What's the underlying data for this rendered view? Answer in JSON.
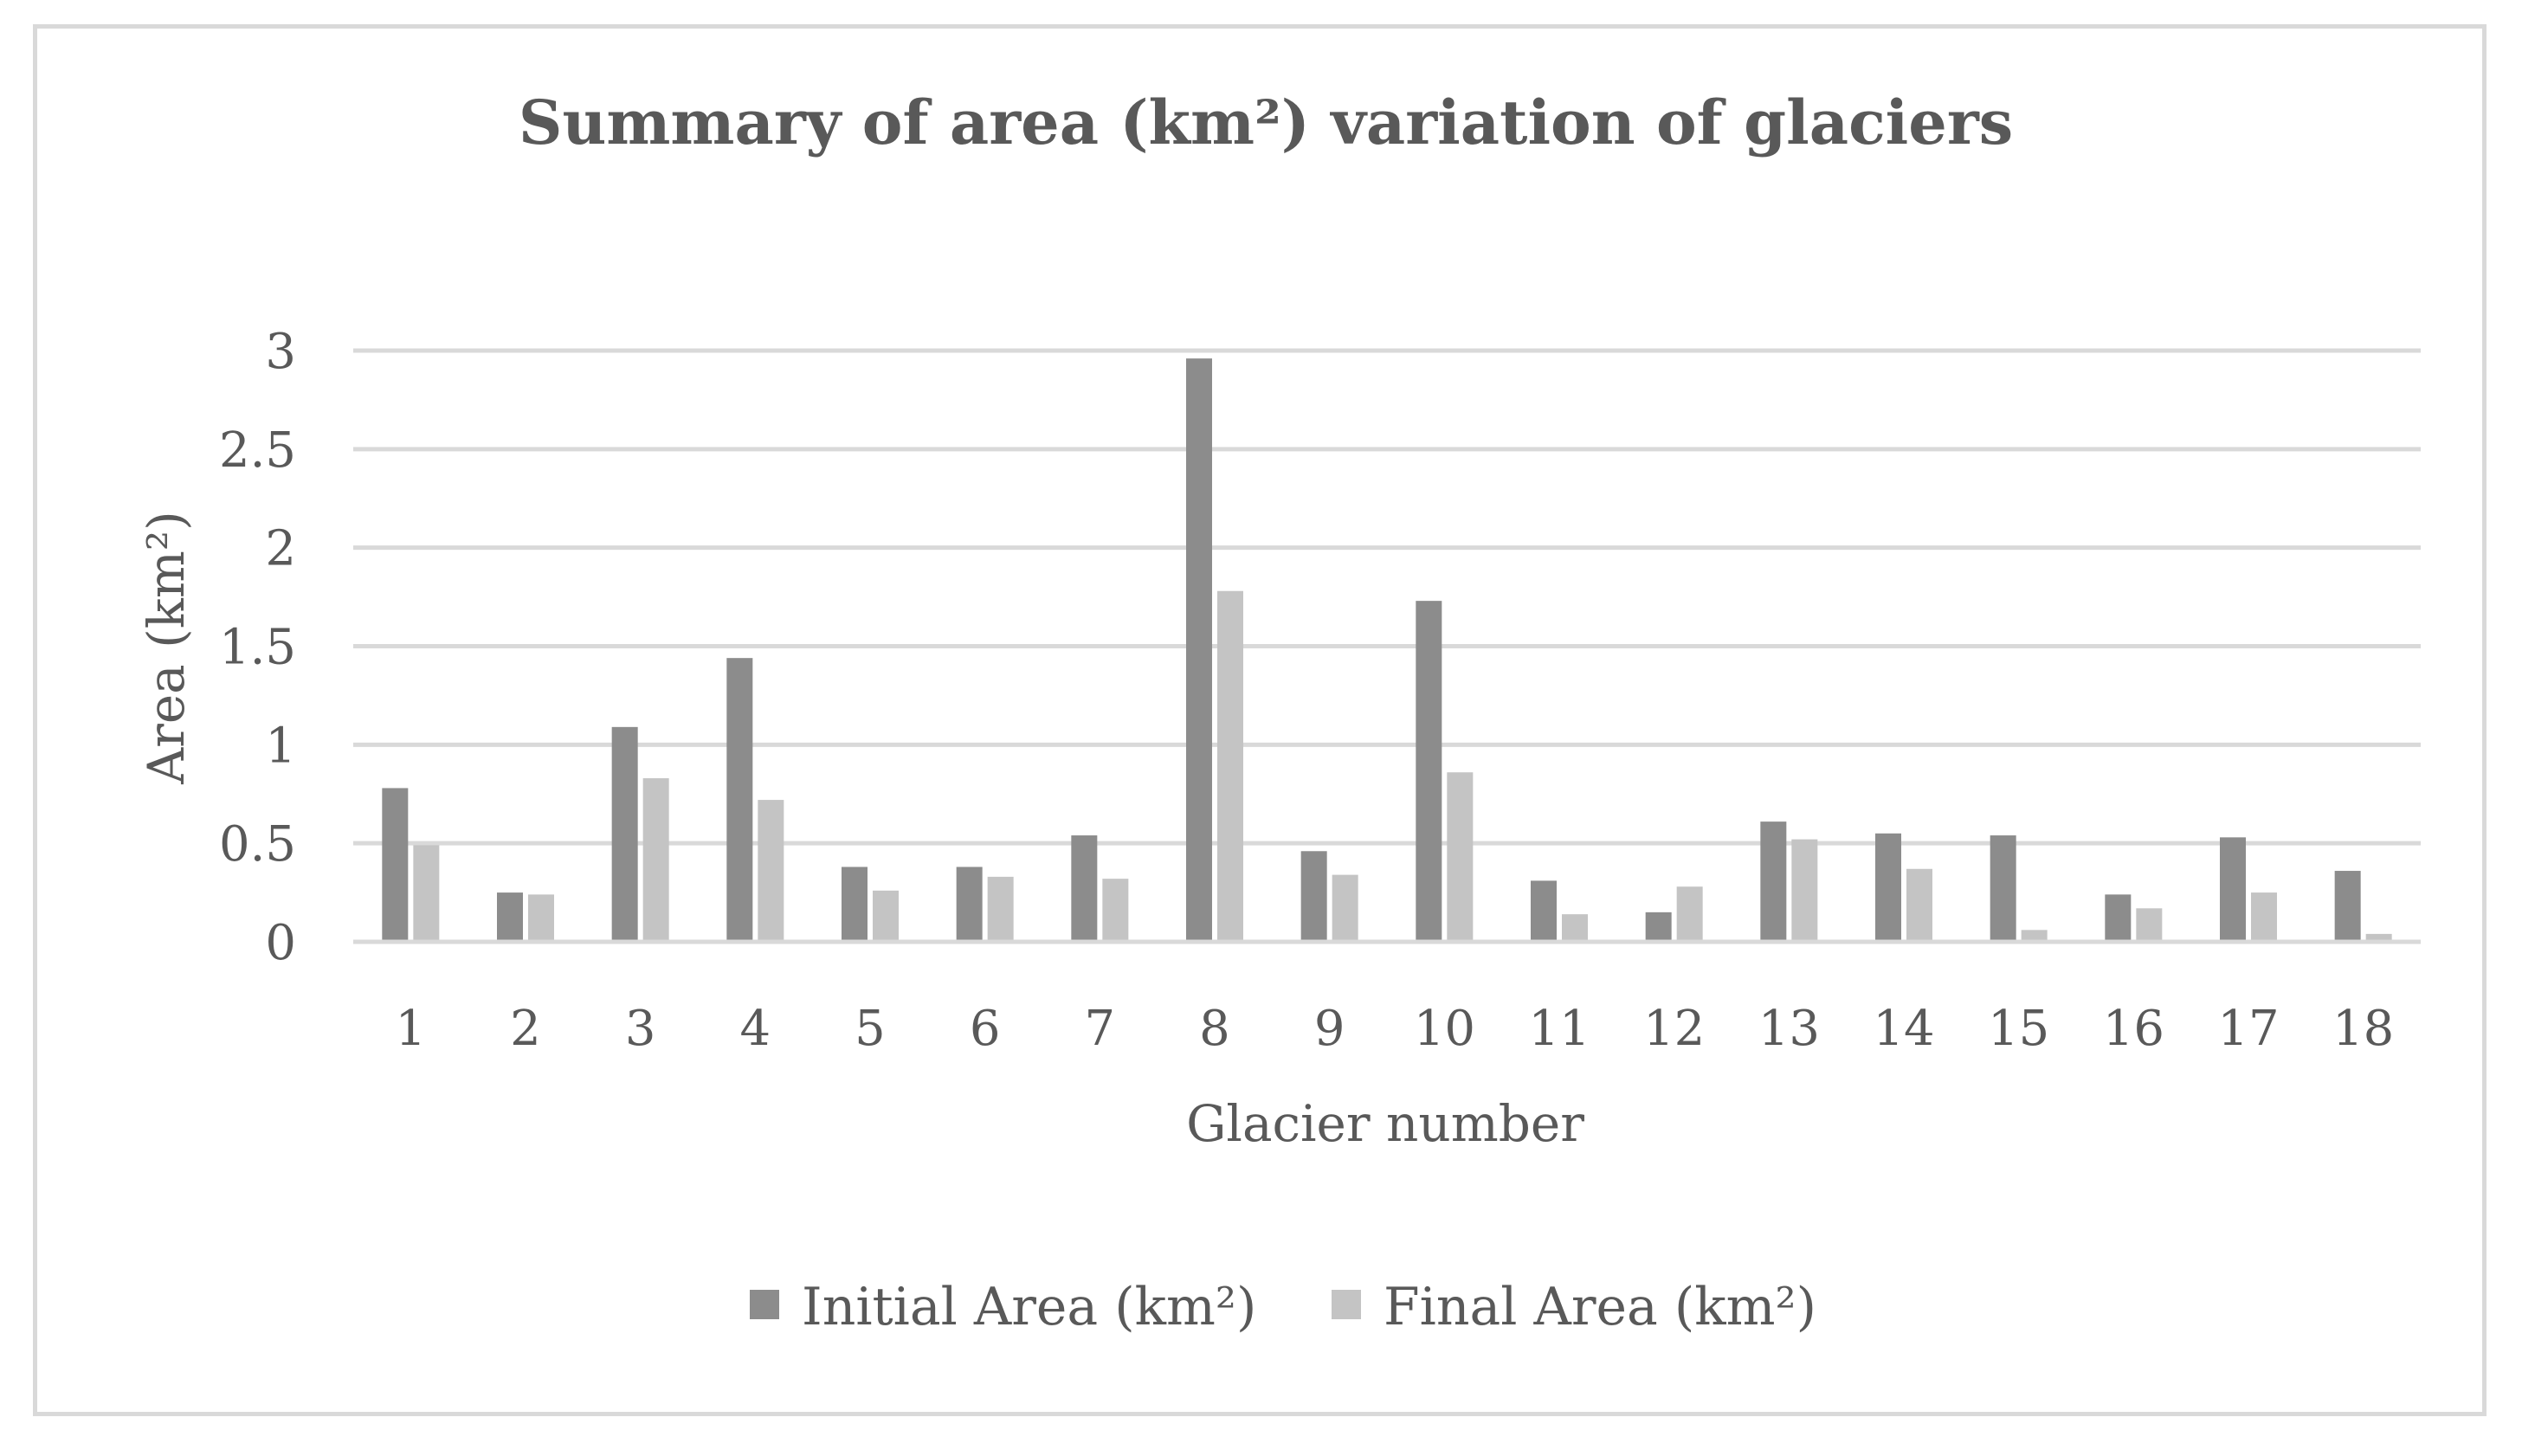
{
  "chart_data": {
    "type": "bar",
    "title": "Summary of area (km²) variation of glaciers",
    "xlabel": "Glacier number",
    "ylabel": "Area (km²)",
    "ylim": [
      0,
      3
    ],
    "yticks": [
      "0",
      "0.5",
      "1",
      "1.5",
      "2",
      "2.5",
      "3"
    ],
    "grid": true,
    "legend_position": "bottom",
    "categories": [
      "1",
      "2",
      "3",
      "4",
      "5",
      "6",
      "7",
      "8",
      "9",
      "10",
      "11",
      "12",
      "13",
      "14",
      "15",
      "16",
      "17",
      "18"
    ],
    "series": [
      {
        "name": "Initial Area (km²)",
        "color": "#8c8c8c",
        "values": [
          0.78,
          0.25,
          1.09,
          1.44,
          0.38,
          0.38,
          0.54,
          2.96,
          0.46,
          1.73,
          0.31,
          0.15,
          0.61,
          0.55,
          0.54,
          0.24,
          0.53,
          0.36
        ]
      },
      {
        "name": "Final Area (km²)",
        "color": "#c4c4c4",
        "values": [
          0.49,
          0.24,
          0.83,
          0.72,
          0.26,
          0.33,
          0.32,
          1.78,
          0.34,
          0.86,
          0.14,
          0.28,
          0.52,
          0.37,
          0.06,
          0.17,
          0.25,
          0.04
        ]
      }
    ]
  }
}
